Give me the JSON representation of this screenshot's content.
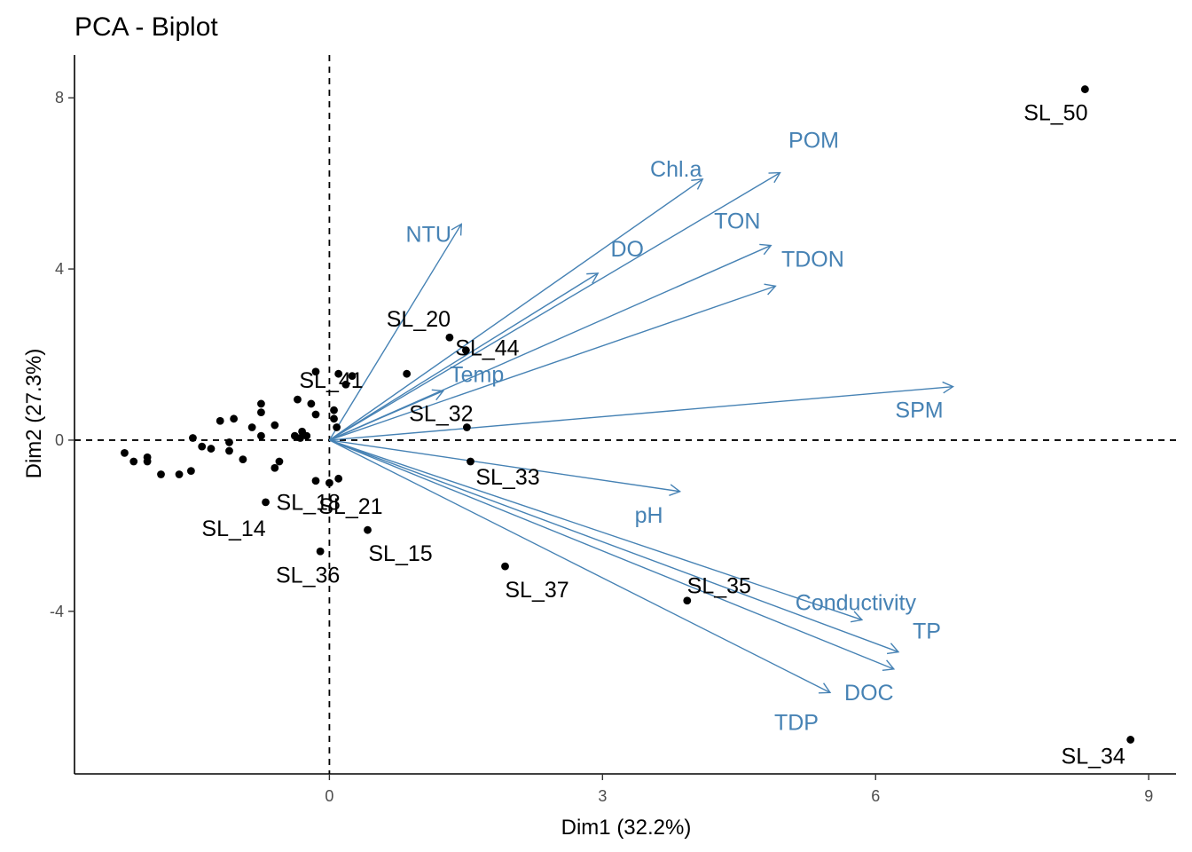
{
  "chart_data": {
    "type": "scatter",
    "title": "PCA - Biplot",
    "xlabel": "Dim1 (32.2%)",
    "ylabel": "Dim2 (27.3%)",
    "xlim": [
      -2.8,
      9.3
    ],
    "ylim": [
      -7.8,
      9.0
    ],
    "x_ticks": [
      0,
      3,
      6,
      9
    ],
    "y_ticks": [
      -4,
      0,
      4,
      8
    ],
    "grid": false,
    "reference_lines": [
      0,
      0
    ],
    "colors": {
      "points": "#000000",
      "variables": "#4682B4",
      "axis": "#000000",
      "ticks": "#4d4d4d"
    },
    "individuals": [
      {
        "x": 8.3,
        "y": 8.2,
        "label": "SL_50"
      },
      {
        "x": 8.8,
        "y": -7.0,
        "label": "SL_34"
      },
      {
        "x": 1.32,
        "y": 2.4,
        "label": "SL_20"
      },
      {
        "x": 1.5,
        "y": 2.1,
        "label": "SL_44"
      },
      {
        "x": 1.51,
        "y": 0.3,
        "label": "SL_32"
      },
      {
        "x": 0.05,
        "y": 0.5,
        "label": "SL_41"
      },
      {
        "x": 1.55,
        "y": -0.5,
        "label": "SL_33"
      },
      {
        "x": 0.0,
        "y": -1.0,
        "label": "SL_21"
      },
      {
        "x": -0.7,
        "y": -1.45,
        "label": "SL_14"
      },
      {
        "x": 0.42,
        "y": -2.1,
        "label": "SL_15"
      },
      {
        "x": -0.1,
        "y": -2.6,
        "label": "SL_36"
      },
      {
        "x": 1.93,
        "y": -2.95,
        "label": "SL_37"
      },
      {
        "x": 3.93,
        "y": -3.75,
        "label": "SL_35"
      },
      {
        "x": 0.1,
        "y": -0.9,
        "label": "SL_18"
      },
      {
        "x": 0.85,
        "y": 1.55,
        "label": ""
      },
      {
        "x": -0.15,
        "y": 1.6,
        "label": ""
      },
      {
        "x": 0.1,
        "y": 1.55,
        "label": ""
      },
      {
        "x": 0.25,
        "y": 1.5,
        "label": ""
      },
      {
        "x": 0.18,
        "y": 1.3,
        "label": ""
      },
      {
        "x": -0.35,
        "y": 0.95,
        "label": ""
      },
      {
        "x": -0.2,
        "y": 0.85,
        "label": ""
      },
      {
        "x": -0.15,
        "y": 0.6,
        "label": ""
      },
      {
        "x": 0.05,
        "y": 0.7,
        "label": ""
      },
      {
        "x": 0.08,
        "y": 0.3,
        "label": ""
      },
      {
        "x": -0.3,
        "y": 0.2,
        "label": ""
      },
      {
        "x": -0.38,
        "y": 0.1,
        "label": ""
      },
      {
        "x": -0.32,
        "y": 0.05,
        "label": ""
      },
      {
        "x": -0.25,
        "y": 0.1,
        "label": ""
      },
      {
        "x": -0.6,
        "y": 0.35,
        "label": ""
      },
      {
        "x": -0.75,
        "y": 0.85,
        "label": ""
      },
      {
        "x": -0.75,
        "y": 0.65,
        "label": ""
      },
      {
        "x": -0.85,
        "y": 0.3,
        "label": ""
      },
      {
        "x": -0.75,
        "y": 0.1,
        "label": ""
      },
      {
        "x": -1.05,
        "y": 0.5,
        "label": ""
      },
      {
        "x": -1.2,
        "y": 0.45,
        "label": ""
      },
      {
        "x": -1.5,
        "y": 0.05,
        "label": ""
      },
      {
        "x": -1.4,
        "y": -0.15,
        "label": ""
      },
      {
        "x": -1.3,
        "y": -0.2,
        "label": ""
      },
      {
        "x": -1.1,
        "y": -0.05,
        "label": ""
      },
      {
        "x": -1.1,
        "y": -0.25,
        "label": ""
      },
      {
        "x": -0.95,
        "y": -0.45,
        "label": ""
      },
      {
        "x": -0.6,
        "y": -0.65,
        "label": ""
      },
      {
        "x": -0.55,
        "y": -0.5,
        "label": ""
      },
      {
        "x": -2.25,
        "y": -0.3,
        "label": ""
      },
      {
        "x": -2.15,
        "y": -0.5,
        "label": ""
      },
      {
        "x": -2.0,
        "y": -0.4,
        "label": ""
      },
      {
        "x": -2.0,
        "y": -0.5,
        "label": ""
      },
      {
        "x": -1.85,
        "y": -0.8,
        "label": ""
      },
      {
        "x": -1.65,
        "y": -0.8,
        "label": ""
      },
      {
        "x": -1.52,
        "y": -0.72,
        "label": ""
      },
      {
        "x": -0.15,
        "y": -0.95,
        "label": ""
      }
    ],
    "variables": [
      {
        "name": "Chl.a",
        "x": 4.1,
        "y": 6.1
      },
      {
        "name": "POM",
        "x": 4.95,
        "y": 6.25
      },
      {
        "name": "TON",
        "x": 4.85,
        "y": 4.55
      },
      {
        "name": "TDON",
        "x": 4.9,
        "y": 3.6
      },
      {
        "name": "DO",
        "x": 2.95,
        "y": 3.9
      },
      {
        "name": "NTU",
        "x": 1.45,
        "y": 5.05
      },
      {
        "name": "Temp",
        "x": 1.25,
        "y": 1.15
      },
      {
        "name": "SPM",
        "x": 6.85,
        "y": 1.25
      },
      {
        "name": "pH",
        "x": 3.85,
        "y": -1.2
      },
      {
        "name": "Conductivity",
        "x": 5.85,
        "y": -4.2
      },
      {
        "name": "TP",
        "x": 6.25,
        "y": -4.95
      },
      {
        "name": "DOC",
        "x": 6.2,
        "y": -5.35
      },
      {
        "name": "TDP",
        "x": 5.5,
        "y": -5.9
      }
    ]
  }
}
